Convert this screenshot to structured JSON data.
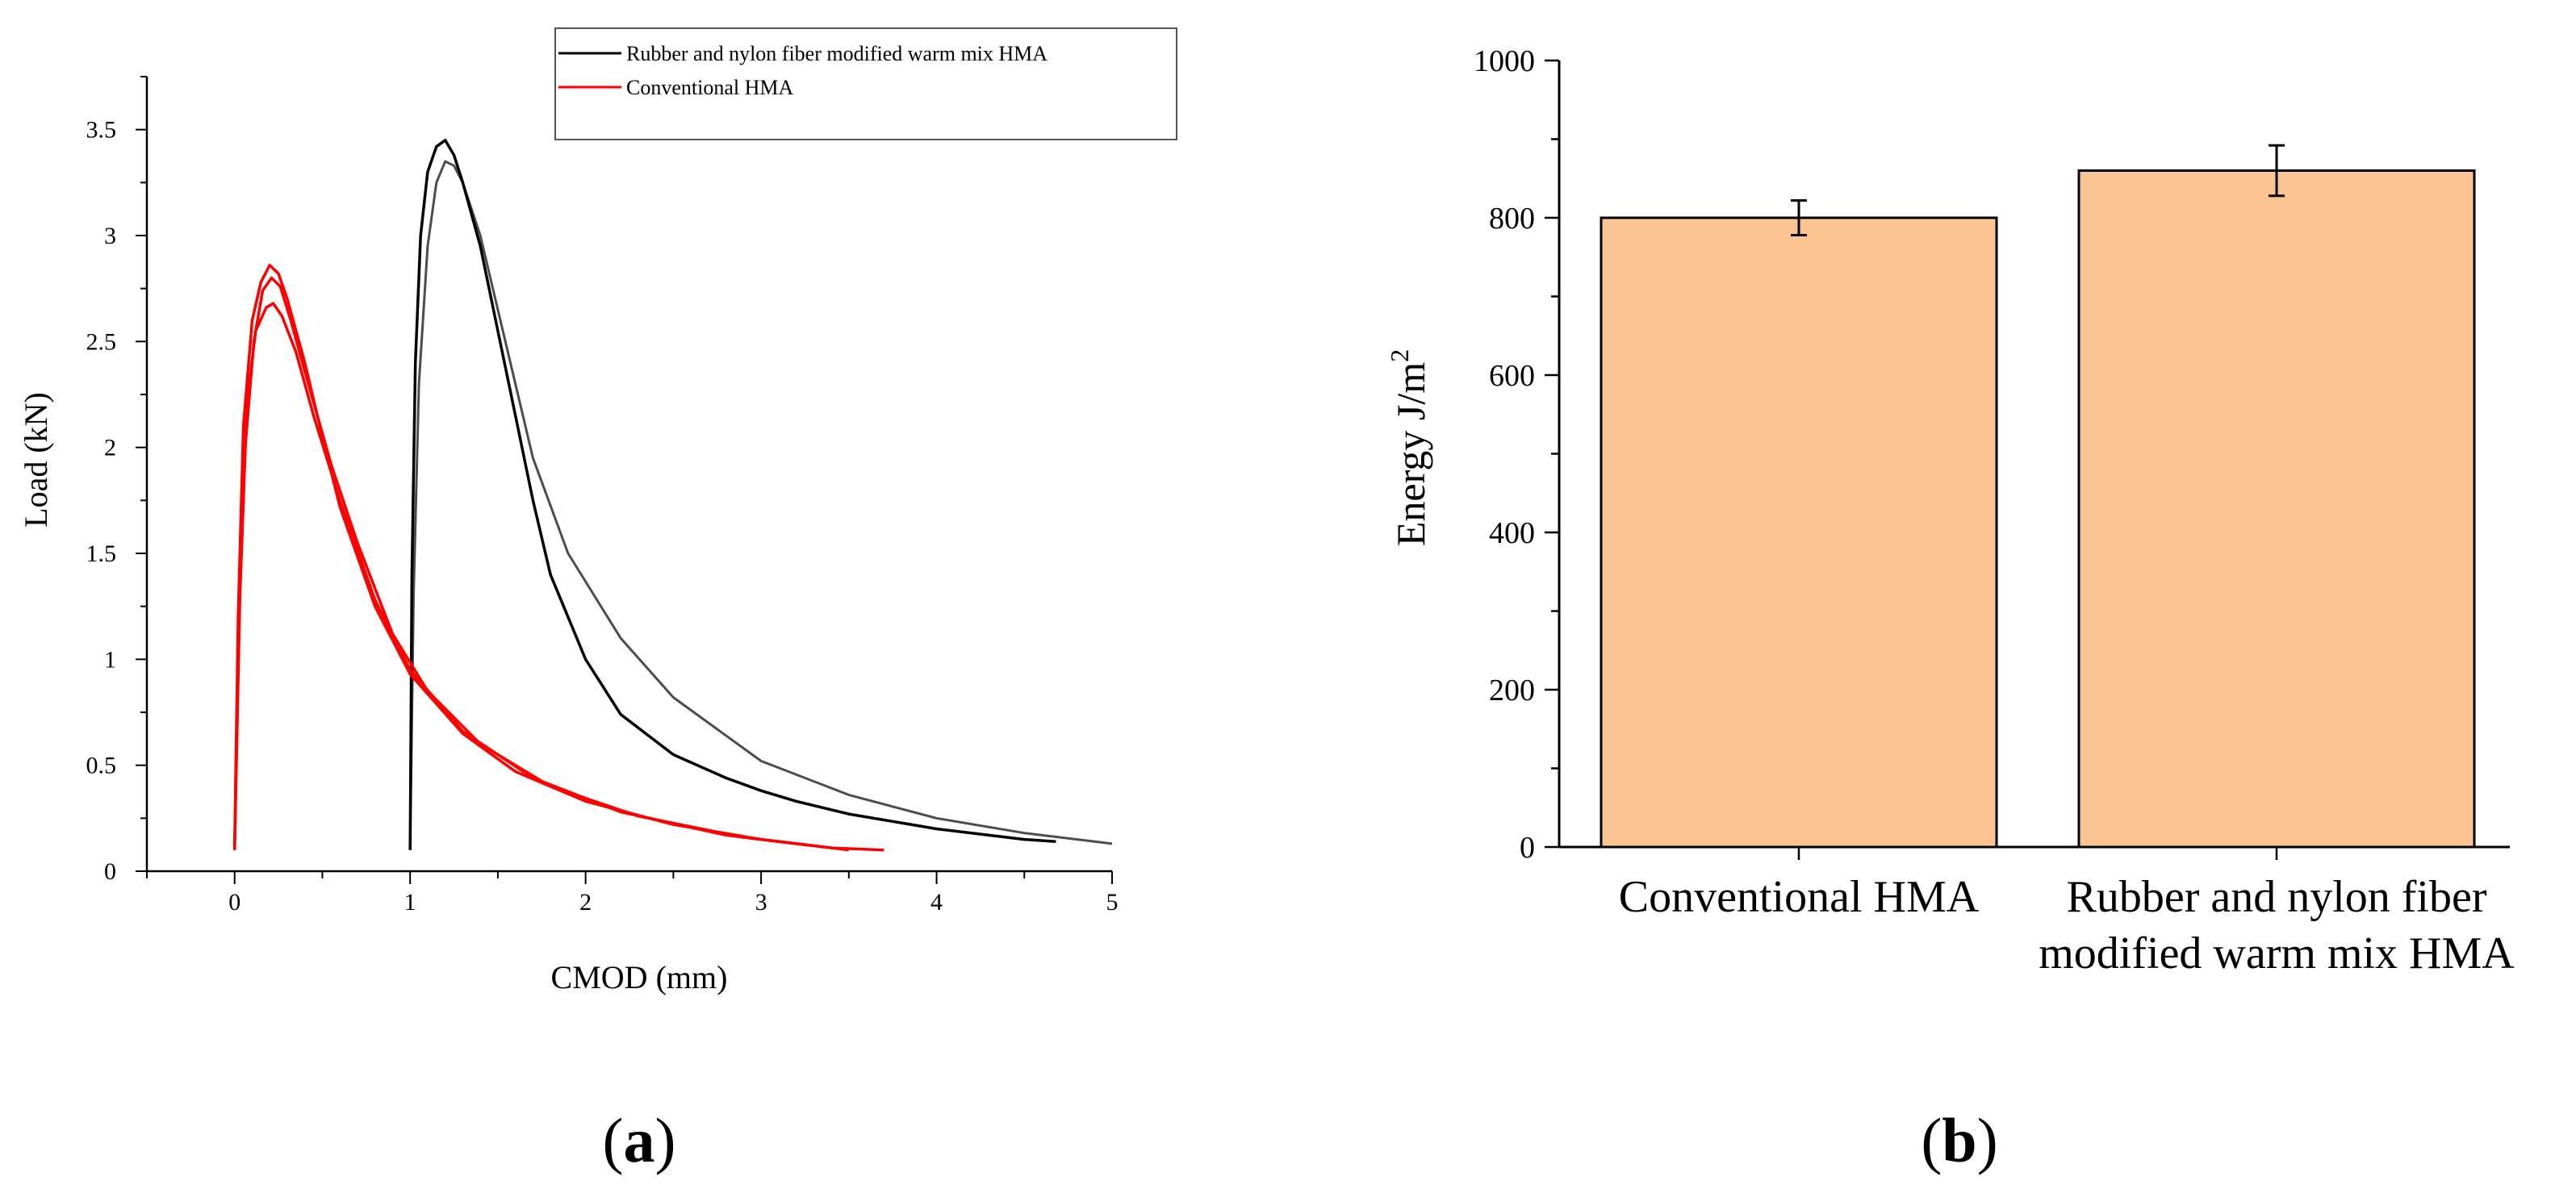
{
  "chart_data": [
    {
      "type": "line",
      "panel_label": "(a)",
      "panel_letter": "a",
      "xlabel": "CMOD (mm)",
      "ylabel": "Load (kN)",
      "xlim": [
        -0.5,
        5
      ],
      "ylim": [
        0,
        3.75
      ],
      "x_ticks": [
        "0",
        "1",
        "2",
        "3",
        "4",
        "5"
      ],
      "y_ticks": [
        "0",
        "0.5",
        "1",
        "1.5",
        "2",
        "2.5",
        "3",
        "3.5"
      ],
      "legend_position": "top-right",
      "series": [
        {
          "name": "Rubber and nylon fiber modified warm mix HMA",
          "color": "#000000",
          "runs": [
            {
              "x": [
                1.0,
                1.01,
                1.03,
                1.06,
                1.1,
                1.15,
                1.2,
                1.25,
                1.3,
                1.4,
                1.5,
                1.6,
                1.7,
                1.8,
                2.0,
                2.2,
                2.5,
                2.8,
                3.0,
                3.2,
                3.5,
                4.0,
                4.5,
                4.68
              ],
              "y": [
                0.1,
                1.4,
                2.4,
                3.0,
                3.3,
                3.42,
                3.45,
                3.38,
                3.25,
                2.95,
                2.55,
                2.15,
                1.75,
                1.4,
                1.0,
                0.74,
                0.55,
                0.44,
                0.38,
                0.33,
                0.27,
                0.2,
                0.15,
                0.14
              ]
            },
            {
              "x": [
                1.0,
                1.02,
                1.05,
                1.1,
                1.15,
                1.2,
                1.25,
                1.3,
                1.4,
                1.5,
                1.7,
                1.9,
                2.2,
                2.5,
                3.0,
                3.5,
                4.0,
                4.5,
                5.0
              ],
              "y": [
                0.1,
                1.3,
                2.3,
                2.95,
                3.25,
                3.35,
                3.33,
                3.25,
                3.0,
                2.65,
                1.95,
                1.5,
                1.1,
                0.82,
                0.52,
                0.36,
                0.25,
                0.18,
                0.13
              ]
            }
          ]
        },
        {
          "name": "Conventional HMA",
          "color": "#ff0000",
          "runs": [
            {
              "x": [
                0.0,
                0.02,
                0.05,
                0.1,
                0.15,
                0.2,
                0.25,
                0.3,
                0.4,
                0.5,
                0.6,
                0.8,
                1.0,
                1.3,
                1.6,
                2.0,
                2.5,
                3.0,
                3.4,
                3.7
              ],
              "y": [
                0.1,
                1.2,
                2.1,
                2.6,
                2.78,
                2.86,
                2.82,
                2.7,
                2.4,
                2.05,
                1.72,
                1.25,
                0.93,
                0.65,
                0.47,
                0.33,
                0.22,
                0.15,
                0.11,
                0.1
              ]
            },
            {
              "x": [
                0.0,
                0.03,
                0.07,
                0.12,
                0.18,
                0.22,
                0.27,
                0.35,
                0.45,
                0.6,
                0.8,
                1.0,
                1.3,
                1.7,
                2.2,
                2.8,
                3.3
              ],
              "y": [
                0.1,
                1.3,
                2.2,
                2.55,
                2.66,
                2.68,
                2.62,
                2.45,
                2.15,
                1.75,
                1.28,
                0.95,
                0.66,
                0.44,
                0.28,
                0.17,
                0.12
              ]
            },
            {
              "x": [
                0.0,
                0.02,
                0.06,
                0.11,
                0.16,
                0.21,
                0.26,
                0.32,
                0.42,
                0.55,
                0.7,
                0.9,
                1.1,
                1.4,
                1.8,
                2.3,
                2.9,
                3.5
              ],
              "y": [
                0.1,
                1.1,
                2.0,
                2.5,
                2.74,
                2.8,
                2.76,
                2.6,
                2.3,
                1.92,
                1.55,
                1.12,
                0.85,
                0.6,
                0.4,
                0.26,
                0.16,
                0.1
              ]
            }
          ]
        }
      ]
    },
    {
      "type": "bar",
      "panel_label": "(b)",
      "panel_letter": "b",
      "categories": [
        "Conventional HMA",
        "Rubber and nylon fiber modified warm mix HMA"
      ],
      "category_lines": [
        [
          "Conventional HMA"
        ],
        [
          "Rubber and nylon fiber",
          "modified warm mix HMA"
        ]
      ],
      "values": [
        800,
        860
      ],
      "errors": [
        22,
        32
      ],
      "ylabel": "Energy J/m",
      "ylabel_superscript": "2",
      "ylim": [
        0,
        1000
      ],
      "y_ticks": [
        "0",
        "200",
        "400",
        "600",
        "800",
        "1000"
      ],
      "bar_color": "#fbc593",
      "bar_edge": "#000000"
    }
  ]
}
